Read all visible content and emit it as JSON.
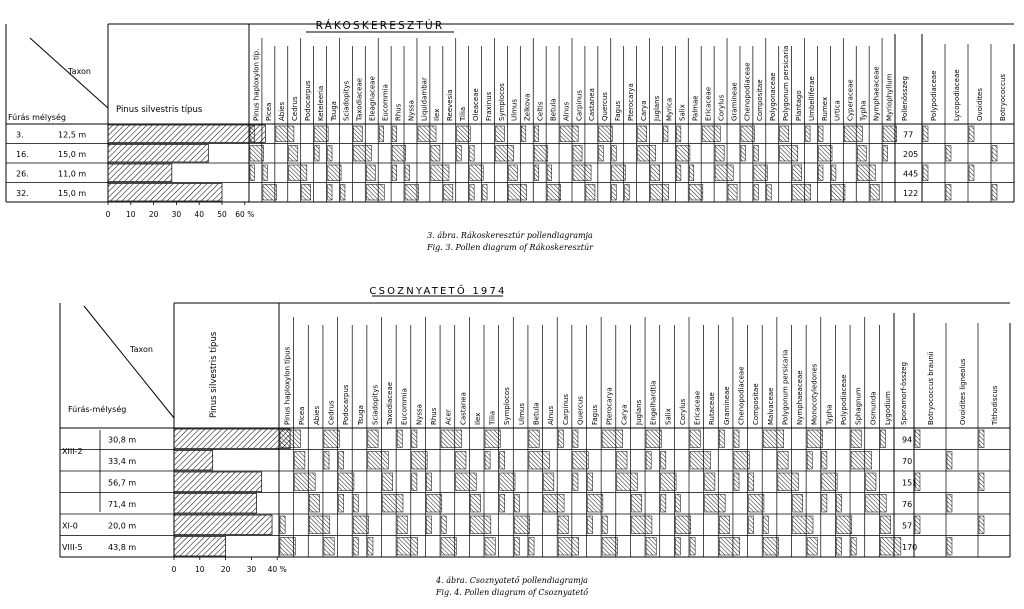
{
  "chart_data": [
    {
      "type": "bar",
      "title": "RÁKOSKERESZTÚR",
      "corner_taxon_label": "Taxon",
      "corner_depth_label": "Fúrás mélység",
      "main_taxon": "Pinus silvestris típus",
      "samples": [
        {
          "id": "3.",
          "depth": "12,5 m",
          "pinus_silvestris": 69,
          "pollen_count": "77"
        },
        {
          "id": "16.",
          "depth": "15,0 m",
          "pinus_silvestris": 44,
          "pollen_count": "205"
        },
        {
          "id": "26.",
          "depth": "11,0 m",
          "pinus_silvestris": 28,
          "pollen_count": "445"
        },
        {
          "id": "32.",
          "depth": "15,0 m",
          "pinus_silvestris": 50,
          "pollen_count": "122"
        }
      ],
      "taxa": [
        "Pinus haploxylon típ.",
        "Picea",
        "Abies",
        "Cedrus",
        "Podocarpus",
        "Keteleeria",
        "Tsuga",
        "Sciadopitys",
        "Taxodiaceae",
        "Eleagnaceae",
        "Eucommia",
        "Rhus",
        "Nyssa",
        "Liquidambar",
        "Ilex",
        "Reevesia",
        "Tilia",
        "Oleaceae",
        "Fraxinus",
        "Symplocos",
        "Ulmus",
        "Zelkova",
        "Celtis",
        "Betula",
        "Alnus",
        "Carpinus",
        "Castanea",
        "Quercus",
        "Fagus",
        "Pterocarya",
        "Carya",
        "Juglans",
        "Myrica",
        "Salix",
        "Palmae",
        "Ericaceae",
        "Corylus",
        "Gramineae",
        "Chenopodiaceae",
        "Compositae",
        "Polygonaceae",
        "Polygonum persicaria",
        "Plantago",
        "Umbelliferae",
        "Rumex",
        "Urtica",
        "Cyperaceae",
        "Typha",
        "Nymphaeaceae",
        "Myriophyllum"
      ],
      "count_header": "Pollenösszeg",
      "extra_taxa": [
        "Polypodiaceae",
        "Lycopodiaceae",
        "Ovoidites",
        "Botryococcus"
      ],
      "x_ticks": [
        "0",
        "10",
        "20",
        "30",
        "40",
        "50",
        "60 %"
      ],
      "xlim": [
        0,
        60
      ],
      "caption_hu": "3. ábra. Rákoskeresztúr pollendiagramja",
      "caption_en": "Fig. 3. Pollen diagram of Rákoskeresztúr"
    },
    {
      "type": "bar",
      "title": "CSOZNYATETŐ 1974",
      "corner_taxon_label": "Taxon",
      "corner_depth_label": "Fúrás-mélység",
      "main_taxon": "Pinus silvestris típus",
      "borehole_groups": [
        "XIII-2",
        "XI-0",
        "VIII-5"
      ],
      "samples": [
        {
          "depth": "30,8 m",
          "pinus_silvestris": 45,
          "pollen_count": "94"
        },
        {
          "depth": "33,4 m",
          "pinus_silvestris": 15,
          "pollen_count": "70"
        },
        {
          "depth": "56,7 m",
          "pinus_silvestris": 34,
          "pollen_count": "151"
        },
        {
          "depth": "71,4 m",
          "pinus_silvestris": 32,
          "pollen_count": "76"
        },
        {
          "depth": "20,0 m",
          "pinus_silvestris": 38,
          "pollen_count": "57"
        },
        {
          "depth": "43,8 m",
          "pinus_silvestris": 20,
          "pollen_count": "170"
        }
      ],
      "taxa": [
        "Pinus haploxylon típus",
        "Picea",
        "Abies",
        "Cedrus",
        "Podocarpus",
        "Tsuga",
        "Sciadopitys",
        "Taxodiaceae",
        "Eucommia",
        "Nyssa",
        "Rhus",
        "Acer",
        "Castanea",
        "Ilex",
        "Tilia",
        "Symplocos",
        "Ulmus",
        "Betula",
        "Alnus",
        "Carpinus",
        "Quercus",
        "Fagus",
        "Pterocarya",
        "Carya",
        "Juglans",
        "Engelhardtia",
        "Salix",
        "Corylus",
        "Ericaceae",
        "Rutaceae",
        "Gramineae",
        "Chenopodiaceae",
        "Compositae",
        "Malvaceae",
        "Polygonum persicaria",
        "Nymphaeaceae",
        "Monocotyledones",
        "Typha",
        "Polypodiaceae",
        "Sphagnum",
        "Osmunda",
        "Lygodium"
      ],
      "count_header": "Sporamorf-összeg",
      "extra_taxa": [
        "Botryococcus braunii",
        "Ovoidites ligneolus",
        "Tithodiscus"
      ],
      "x_ticks": [
        "0",
        "10",
        "20",
        "30",
        "40 %"
      ],
      "xlim": [
        0,
        40
      ],
      "caption_hu": "4. ábra. Csoznyatető pollendiagramja",
      "caption_en": "Fig. 4. Pollen diagram of Csoznyatető"
    }
  ]
}
